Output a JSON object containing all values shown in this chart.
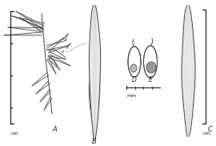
{
  "background_color": "#ffffff",
  "figure_width": 2.7,
  "figure_height": 1.82,
  "dpi": 100,
  "label_A": "A",
  "label_B": "B",
  "label_C": "C",
  "label_D": "D",
  "label_E": "E",
  "scale_cm": "cm",
  "scale_mm": "mm",
  "line_color": "#aaaaaa",
  "dark_line_color": "#222222",
  "outline_color": "#444444",
  "fill_light": "#e8e8e8",
  "fill_mid": "#cccccc",
  "embryo_D": "#bbbbbb",
  "embryo_E": "#999999"
}
